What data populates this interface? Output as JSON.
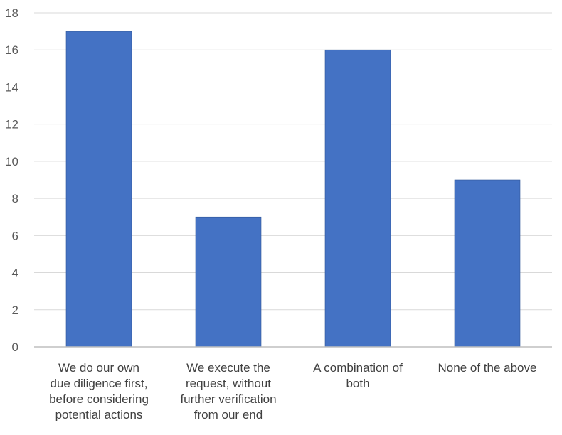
{
  "chart_data": {
    "type": "bar",
    "title": "",
    "xlabel": "",
    "ylabel": "",
    "ylim": [
      0,
      18
    ],
    "yticks": [
      0,
      2,
      4,
      6,
      8,
      10,
      12,
      14,
      16,
      18
    ],
    "grid": true,
    "legend": "none",
    "bar_color": "#4472C4",
    "categories": [
      [
        "We do our own",
        "due diligence first,",
        "before considering",
        "potential actions"
      ],
      [
        "We execute the",
        "request, without",
        "further verification",
        "from our end"
      ],
      [
        "A combination of",
        "both"
      ],
      [
        "None of the above"
      ]
    ],
    "values": [
      17,
      7,
      16,
      9
    ]
  }
}
